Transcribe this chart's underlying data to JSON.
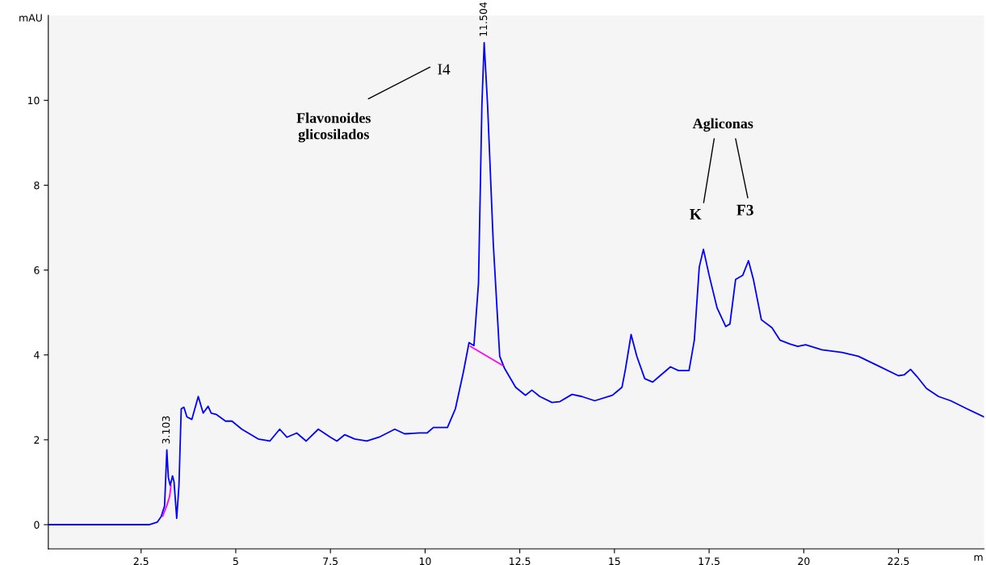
{
  "chart_data": {
    "type": "line",
    "xlabel": "m",
    "ylabel": "mAU",
    "xlim": [
      0.05,
      24.76
    ],
    "ylim": [
      -0.57,
      12.0
    ],
    "xticks": [
      2.5,
      5,
      7.5,
      10,
      12.5,
      15,
      17.5,
      20,
      22.5
    ],
    "yticks": [
      0,
      2,
      4,
      6,
      8,
      10
    ],
    "grid": false,
    "marker": "none",
    "line_style": "solid",
    "series": [
      {
        "color": "#0000ff",
        "x": [
          0.05,
          1.97,
          2.71,
          2.93,
          3.03,
          3.12,
          3.18,
          3.22,
          3.27,
          3.33,
          3.37,
          3.44,
          3.5,
          3.56,
          3.63,
          3.71,
          3.84,
          4.01,
          4.14,
          4.27,
          4.35,
          4.48,
          4.73,
          4.9,
          5.16,
          5.59,
          5.9,
          6.16,
          6.35,
          6.61,
          6.86,
          7.18,
          7.5,
          7.67,
          7.88,
          8.14,
          8.46,
          8.78,
          9.2,
          9.46,
          9.84,
          10.05,
          10.22,
          10.59,
          10.8,
          11.01,
          11.16,
          11.29,
          11.41,
          11.5,
          11.56,
          11.65,
          11.8,
          11.97,
          12.1,
          12.39,
          12.65,
          12.82,
          13.03,
          13.35,
          13.56,
          13.88,
          14.14,
          14.48,
          14.95,
          15.2,
          15.29,
          15.44,
          15.59,
          15.8,
          16.01,
          16.18,
          16.48,
          16.69,
          16.97,
          17.11,
          17.24,
          17.35,
          17.5,
          17.71,
          17.94,
          18.05,
          18.2,
          18.39,
          18.54,
          18.67,
          18.88,
          19.16,
          19.37,
          19.63,
          19.84,
          20.05,
          20.48,
          21.01,
          21.44,
          21.97,
          22.5,
          22.65,
          22.82,
          22.99,
          23.24,
          23.56,
          23.88,
          24.31,
          24.76
        ],
        "values": [
          0,
          0,
          0,
          0.06,
          0.19,
          0.44,
          1.76,
          1.11,
          0.92,
          1.15,
          1.01,
          0.15,
          0.92,
          2.73,
          2.77,
          2.54,
          2.48,
          3.02,
          2.63,
          2.79,
          2.63,
          2.6,
          2.44,
          2.44,
          2.25,
          2.02,
          1.97,
          2.25,
          2.06,
          2.16,
          1.97,
          2.25,
          2.06,
          1.97,
          2.12,
          2.02,
          1.97,
          2.06,
          2.25,
          2.14,
          2.16,
          2.16,
          2.29,
          2.29,
          2.73,
          3.59,
          4.29,
          4.22,
          5.69,
          9.89,
          11.36,
          9.89,
          6.64,
          3.97,
          3.68,
          3.24,
          3.05,
          3.17,
          3.02,
          2.88,
          2.9,
          3.07,
          3.02,
          2.92,
          3.05,
          3.24,
          3.66,
          4.48,
          3.97,
          3.44,
          3.36,
          3.49,
          3.72,
          3.63,
          3.63,
          4.35,
          6.07,
          6.49,
          5.88,
          5.11,
          4.67,
          4.73,
          5.78,
          5.88,
          6.22,
          5.78,
          4.83,
          4.64,
          4.35,
          4.26,
          4.2,
          4.24,
          4.12,
          4.06,
          3.97,
          3.74,
          3.51,
          3.53,
          3.66,
          3.49,
          3.21,
          3.02,
          2.92,
          2.73,
          2.54
        ]
      },
      {
        "color": "#ff00ff",
        "x": [
          3.07,
          3.18,
          3.25,
          3.29
        ],
        "values": [
          0.2,
          0.45,
          0.65,
          0.92
        ]
      },
      {
        "color": "#ff00ff",
        "x": [
          11.2,
          12.05
        ],
        "values": [
          4.2,
          3.75
        ]
      }
    ],
    "annotations": [
      {
        "text": "3.103",
        "x": 3.18,
        "y": 1.76
      },
      {
        "text": "11.504",
        "x": 11.56,
        "y": 11.36
      },
      {
        "text": "I4",
        "x": 11.56,
        "y": 11.36
      },
      "Flavonoides\nglicosilados",
      "Agliconas",
      {
        "text": "K",
        "x": 17.35,
        "y": 6.49
      },
      {
        "text": "F3",
        "x": 18.54,
        "y": 6.22
      }
    ]
  }
}
